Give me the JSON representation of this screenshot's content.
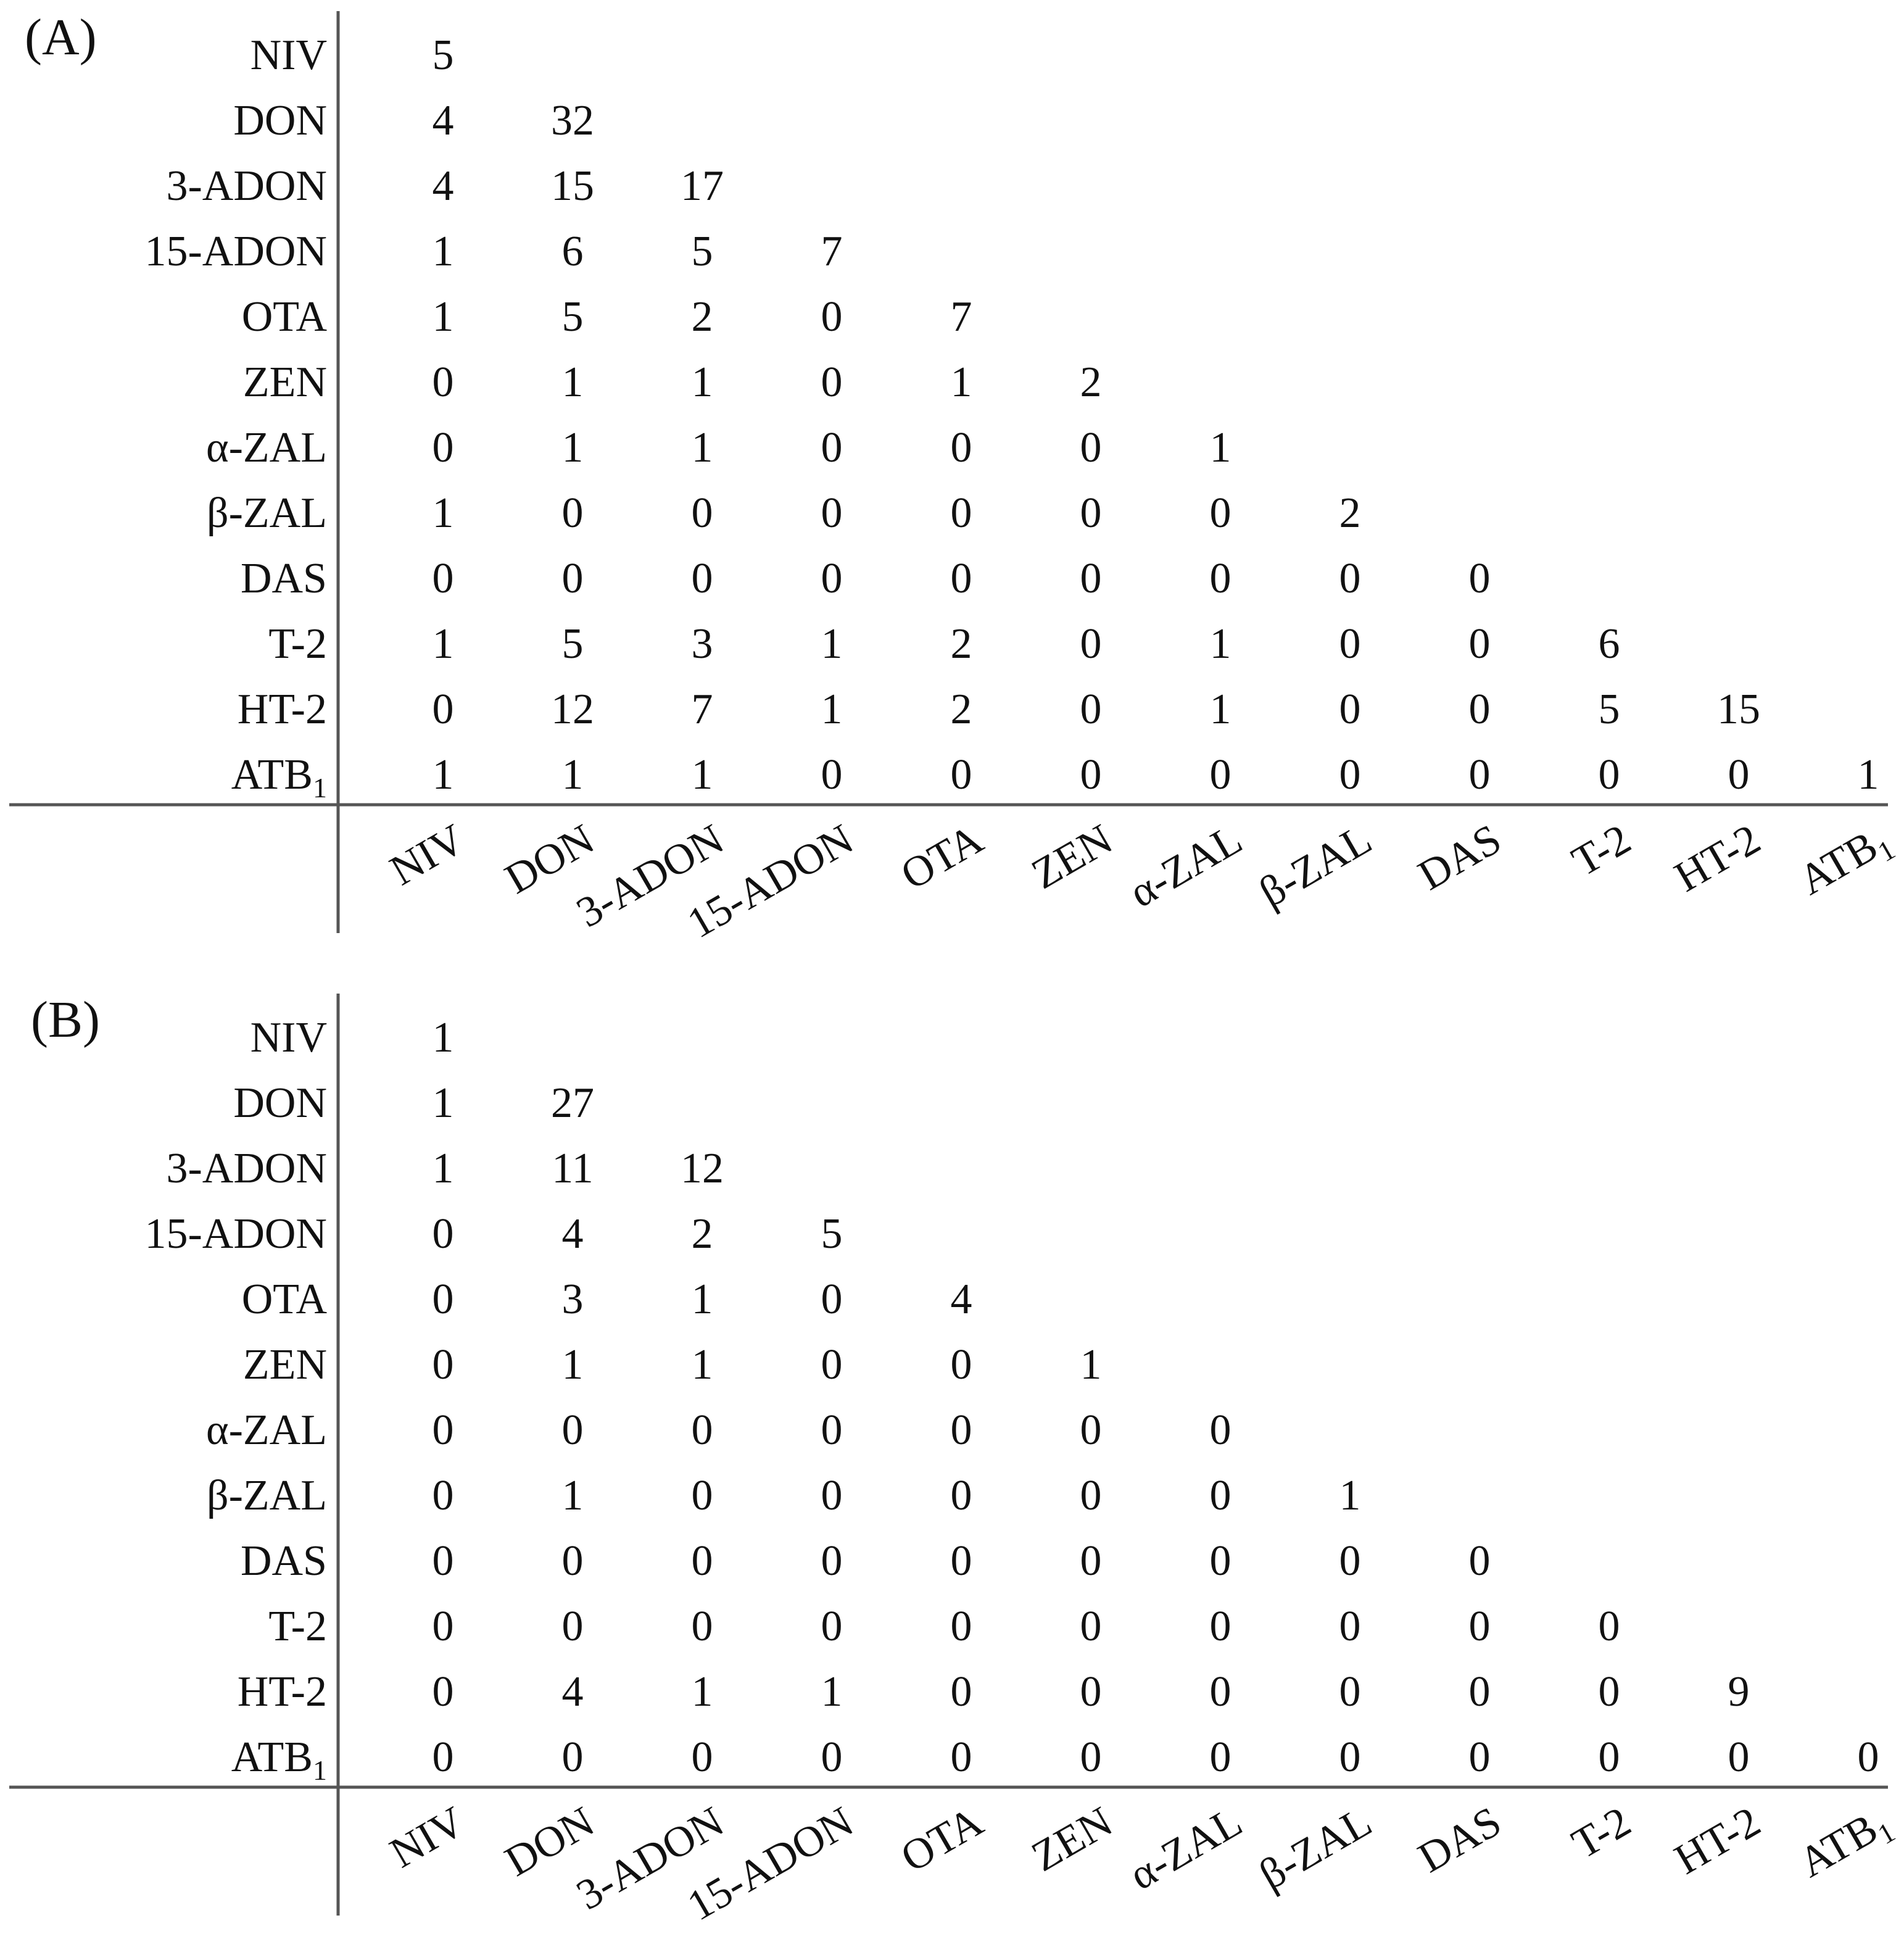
{
  "chart_data": [
    {
      "type": "table",
      "panel_label": "(A)",
      "row_labels": [
        "NIV",
        "DON",
        "3-ADON",
        "15-ADON",
        "OTA",
        "ZEN",
        "α-ZAL",
        "β-ZAL",
        "DAS",
        "T-2",
        "HT-2",
        "ATB1"
      ],
      "column_labels": [
        "NIV",
        "DON",
        "3-ADON",
        "15-ADON",
        "OTA",
        "ZEN",
        "α-ZAL",
        "β-ZAL",
        "DAS",
        "T-2",
        "HT-2",
        "ATB1"
      ],
      "matrix": [
        [
          5
        ],
        [
          4,
          32
        ],
        [
          4,
          15,
          17
        ],
        [
          1,
          6,
          5,
          7
        ],
        [
          1,
          5,
          2,
          0,
          7
        ],
        [
          0,
          1,
          1,
          0,
          1,
          2
        ],
        [
          0,
          1,
          1,
          0,
          0,
          0,
          1
        ],
        [
          1,
          0,
          0,
          0,
          0,
          0,
          0,
          2
        ],
        [
          0,
          0,
          0,
          0,
          0,
          0,
          0,
          0,
          0
        ],
        [
          1,
          5,
          3,
          1,
          2,
          0,
          1,
          0,
          0,
          6
        ],
        [
          0,
          12,
          7,
          1,
          2,
          0,
          1,
          0,
          0,
          5,
          15
        ],
        [
          1,
          1,
          1,
          0,
          0,
          0,
          0,
          0,
          0,
          0,
          0,
          1
        ]
      ]
    },
    {
      "type": "table",
      "panel_label": "(B)",
      "row_labels": [
        "NIV",
        "DON",
        "3-ADON",
        "15-ADON",
        "OTA",
        "ZEN",
        "α-ZAL",
        "β-ZAL",
        "DAS",
        "T-2",
        "HT-2",
        "ATB1"
      ],
      "column_labels": [
        "NIV",
        "DON",
        "3-ADON",
        "15-ADON",
        "OTA",
        "ZEN",
        "α-ZAL",
        "β-ZAL",
        "DAS",
        "T-2",
        "HT-2",
        "ATB1"
      ],
      "matrix": [
        [
          1
        ],
        [
          1,
          27
        ],
        [
          1,
          11,
          12
        ],
        [
          0,
          4,
          2,
          5
        ],
        [
          0,
          3,
          1,
          0,
          4
        ],
        [
          0,
          1,
          1,
          0,
          0,
          1
        ],
        [
          0,
          0,
          0,
          0,
          0,
          0,
          0
        ],
        [
          0,
          1,
          0,
          0,
          0,
          0,
          0,
          1
        ],
        [
          0,
          0,
          0,
          0,
          0,
          0,
          0,
          0,
          0
        ],
        [
          0,
          0,
          0,
          0,
          0,
          0,
          0,
          0,
          0,
          0
        ],
        [
          0,
          4,
          1,
          1,
          0,
          0,
          0,
          0,
          0,
          0,
          9
        ],
        [
          0,
          0,
          0,
          0,
          0,
          0,
          0,
          0,
          0,
          0,
          0,
          0
        ]
      ]
    }
  ]
}
